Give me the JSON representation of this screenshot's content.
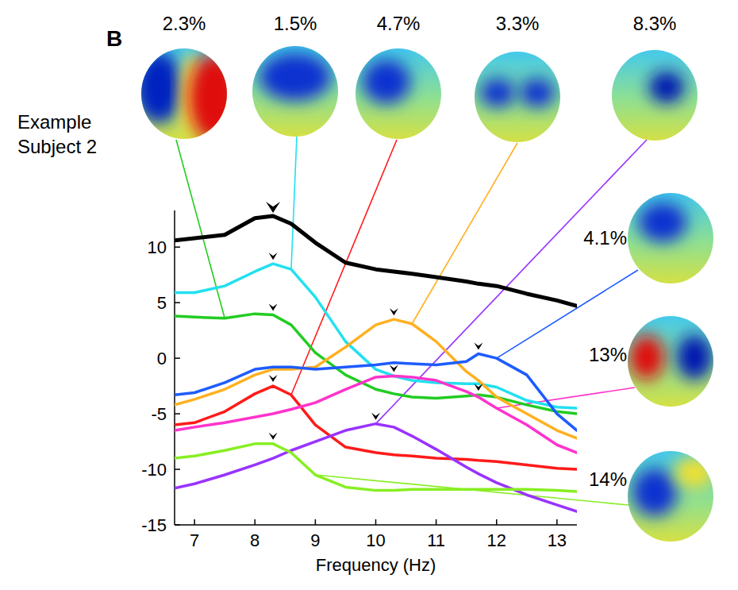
{
  "chart_data": {
    "type": "line",
    "panel_label": "B",
    "subject_label": "Example Subject 2",
    "x_label": "Frequency (Hz)",
    "x": [
      6.67,
      7,
      7.5,
      8,
      8.3,
      8.6,
      9,
      9.5,
      10,
      10.3,
      10.6,
      11,
      11.5,
      11.7,
      12,
      12.5,
      13,
      13.33
    ],
    "xlim": [
      6.67,
      13.33
    ],
    "xticks": [
      7,
      8,
      9,
      10,
      11,
      12,
      13
    ],
    "ylim": [
      -15,
      13.3
    ],
    "yticks": [
      -15,
      -10,
      -5,
      0,
      5,
      10
    ],
    "grid": false,
    "series": [
      {
        "color": "#000000",
        "values": [
          10.6,
          10.8,
          11.1,
          12.6,
          12.8,
          12.1,
          10.4,
          8.6,
          8.0,
          7.8,
          7.6,
          7.3,
          6.9,
          6.7,
          6.5,
          5.8,
          5.2,
          4.7
        ],
        "peaks_x": [
          8.3
        ]
      },
      {
        "color": "#22cc22",
        "values": [
          3.8,
          3.7,
          3.6,
          4.0,
          3.9,
          3.0,
          0.5,
          -1.5,
          -2.8,
          -3.2,
          -3.5,
          -3.6,
          -3.4,
          -3.3,
          -3.5,
          -4.2,
          -4.8,
          -5.0
        ],
        "peaks_x": [
          8.3,
          11.7
        ],
        "variance": {
          "value": 2.3,
          "label": "2.3%"
        },
        "leader_x": 7.5
      },
      {
        "color": "#22e0f0",
        "values": [
          5.9,
          5.9,
          6.5,
          7.8,
          8.5,
          8.0,
          5.5,
          1.5,
          -1.0,
          -1.6,
          -2.0,
          -2.2,
          -2.3,
          -2.3,
          -2.6,
          -3.8,
          -4.4,
          -4.5
        ],
        "peaks_x": [
          8.3
        ],
        "variance": {
          "value": 1.5,
          "label": "1.5%"
        },
        "leader_x": 8.6
      },
      {
        "color": "#ff1a1a",
        "values": [
          -6.0,
          -5.8,
          -4.8,
          -3.2,
          -2.5,
          -3.3,
          -6.0,
          -8.0,
          -8.5,
          -8.7,
          -8.8,
          -9.0,
          -9.1,
          -9.2,
          -9.3,
          -9.6,
          -9.9,
          -10.0
        ],
        "peaks_x": [
          8.3
        ],
        "variance": {
          "value": 4.7,
          "label": "4.7%"
        },
        "leader_x": 8.6
      },
      {
        "color": "#ffb020",
        "values": [
          -4.2,
          -3.7,
          -2.8,
          -1.5,
          -1.0,
          -1.0,
          -0.8,
          1.0,
          3.0,
          3.5,
          3.1,
          1.5,
          -1.2,
          -2.0,
          -3.5,
          -5.0,
          -6.5,
          -7.2
        ],
        "peaks_x": [
          10.3
        ],
        "variance": {
          "value": 3.3,
          "label": "3.3%"
        },
        "leader_x": 10.6
      },
      {
        "color": "#9933ff",
        "values": [
          -11.7,
          -11.3,
          -10.5,
          -9.6,
          -9.0,
          -8.3,
          -7.5,
          -6.5,
          -5.9,
          -6.2,
          -7.0,
          -8.2,
          -9.8,
          -10.4,
          -11.2,
          -12.3,
          -13.2,
          -13.8
        ],
        "peaks_x": [
          10
        ],
        "variance": {
          "value": 8.3,
          "label": "8.3%"
        },
        "leader_x": 10
      },
      {
        "color": "#1e5cff",
        "values": [
          -3.3,
          -3.1,
          -2.2,
          -1.0,
          -0.8,
          -0.8,
          -1.0,
          -0.8,
          -0.6,
          -0.4,
          -0.5,
          -0.6,
          -0.3,
          0.4,
          0,
          -1.5,
          -5.0,
          -6.5
        ],
        "peaks_x": [
          11.7
        ],
        "variance": {
          "value": 4.1,
          "label": "4.1%"
        },
        "leader_x": 12
      },
      {
        "color": "#ff33cc",
        "values": [
          -6.5,
          -6.2,
          -5.8,
          -5.3,
          -5.0,
          -4.6,
          -4.0,
          -2.8,
          -1.7,
          -1.6,
          -1.7,
          -2.0,
          -3.0,
          -3.5,
          -4.5,
          -6.0,
          -7.8,
          -8.5
        ],
        "peaks_x": [
          10.3
        ],
        "variance": {
          "value": 13,
          "label": "13%"
        },
        "leader_x": 12
      },
      {
        "color": "#88ee22",
        "values": [
          -9.0,
          -8.8,
          -8.3,
          -7.7,
          -7.7,
          -8.5,
          -10.5,
          -11.6,
          -11.9,
          -11.9,
          -11.8,
          -11.8,
          -11.8,
          -11.8,
          -11.8,
          -11.8,
          -11.9,
          -12.0
        ],
        "peaks_x": [
          8.3
        ],
        "variance": {
          "value": 14,
          "label": "14%"
        },
        "leader_x": 9
      }
    ]
  }
}
